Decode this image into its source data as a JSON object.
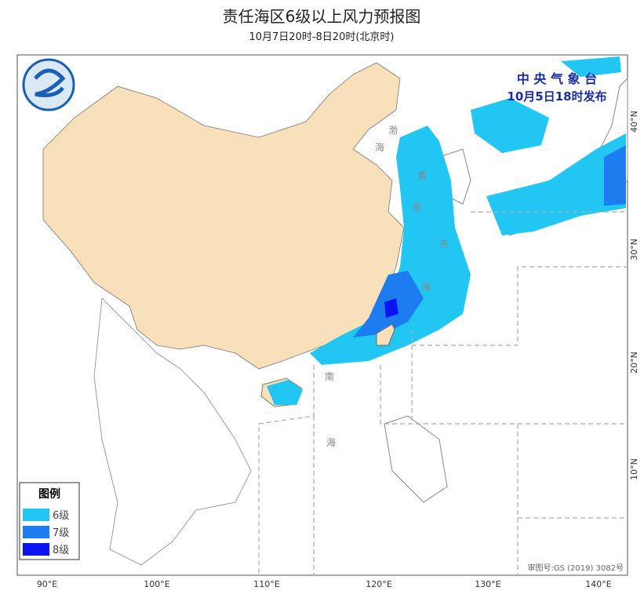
{
  "header": {
    "title": "责任海区6级以上风力预报图",
    "subtitle": "10月7日20时-8日20时(北京时)"
  },
  "issuer": {
    "agency": "中 央 气 象 台",
    "issued": "10月5日18时发布"
  },
  "sea_labels": {
    "bohai": [
      "渤",
      "海"
    ],
    "huanghai": [
      "黄",
      "海"
    ],
    "donghai": [
      "东",
      "海"
    ],
    "nanhai": [
      "南",
      "海"
    ]
  },
  "legend": {
    "title": "图例",
    "items": [
      {
        "label": "6级",
        "color": "#21c6f3"
      },
      {
        "label": "7级",
        "color": "#1d7cf0"
      },
      {
        "label": "8级",
        "color": "#0a14f0"
      }
    ]
  },
  "lon_labels": [
    "90°E",
    "100°E",
    "110°E",
    "120°E",
    "130°E",
    "140°E"
  ],
  "lat_labels": [
    "40°N",
    "30°N",
    "20°N",
    "10°N"
  ],
  "map_number": "审图号:GS (2019) 3082号"
}
